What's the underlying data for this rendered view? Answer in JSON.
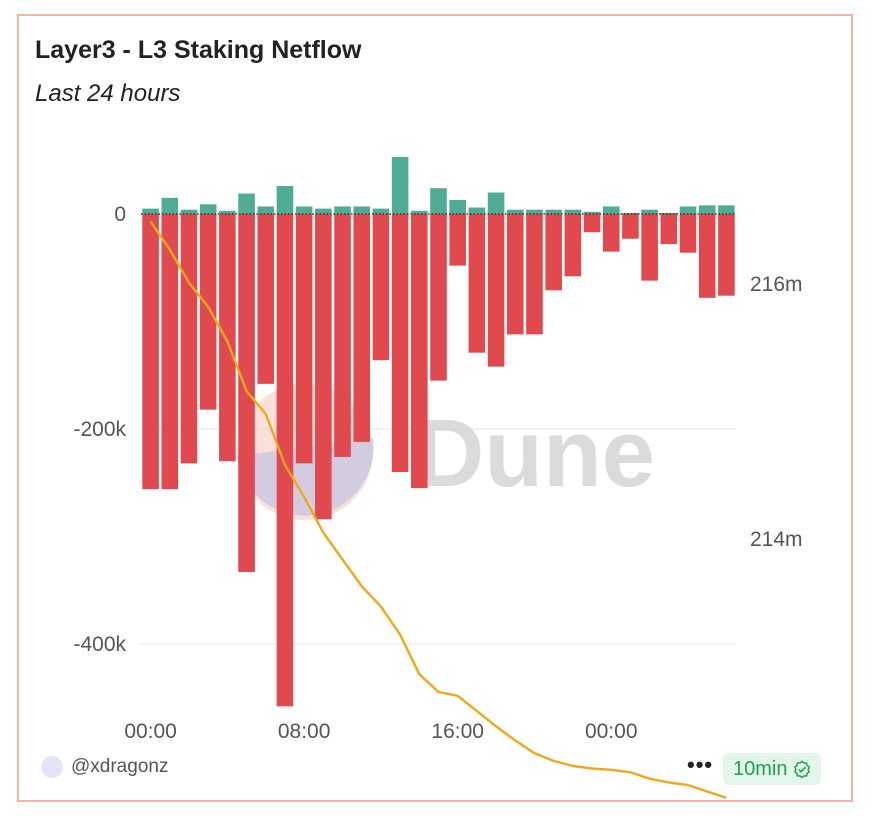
{
  "header": {
    "title": "Layer3 - L3 Staking Netflow",
    "subtitle": "Last 24 hours"
  },
  "watermark": "Dune",
  "footer": {
    "username": "@xdragonz",
    "refresh_label": "10min",
    "more_icon": "more-icon",
    "check_icon": "check-badge-icon"
  },
  "colors": {
    "inflow": "#4fab93",
    "outflow": "#e04a4f",
    "line": "#f0a719"
  },
  "chart_data": {
    "type": "bar",
    "x_tick_labels": [
      "00:00",
      "08:00",
      "16:00",
      "00:00"
    ],
    "x_tick_index": [
      0.5,
      8.5,
      16.5,
      24.5
    ],
    "y_left": {
      "ticks": [
        0,
        -200000,
        -400000
      ],
      "tick_labels": [
        "0",
        "-200k",
        "-400k"
      ],
      "range": [
        -460000,
        55000
      ]
    },
    "y_right": {
      "ticks": [
        216000000,
        214000000
      ],
      "tick_labels": [
        "216m",
        "214m"
      ],
      "range": [
        212650000,
        216720000
      ]
    },
    "series": [
      {
        "kind": "bar",
        "color": "#4fab93",
        "values": [
          5000,
          15000,
          4000,
          9000,
          3000,
          19000,
          7000,
          26000,
          7000,
          5000,
          7000,
          7000,
          5000,
          53000,
          3000,
          24000,
          13000,
          6000,
          20000,
          4000,
          4000,
          4000,
          4000,
          2000,
          7000,
          1000,
          4000,
          1000,
          7000,
          8000,
          8000
        ]
      },
      {
        "kind": "bar",
        "color": "#e04a4f",
        "values": [
          -256000,
          -256000,
          -232000,
          -182000,
          -230000,
          -333000,
          -158000,
          -458000,
          -232000,
          -284000,
          -226000,
          -212000,
          -136000,
          -240000,
          -255000,
          -155000,
          -48000,
          -129000,
          -142000,
          -112000,
          -112000,
          -71000,
          -58000,
          -17000,
          -35000,
          -23000,
          -62000,
          -28000,
          -36000,
          -78000,
          -76000
        ]
      },
      {
        "kind": "line",
        "color": "#f0a719",
        "x": [
          0.5,
          1.5,
          2.5,
          3.5,
          4.5,
          5.5,
          6.5,
          7.5,
          8.5,
          9.5,
          10.5,
          11.5,
          12.5,
          13.5,
          14.5,
          15.5,
          16.5,
          17.5,
          18.5,
          19.5,
          20.5,
          21.5,
          22.5,
          23.5,
          24.5,
          25.5,
          26.5,
          27.5,
          28.5,
          29.5,
          30.5
        ],
        "values": [
          216490000,
          216270000,
          216010000,
          215820000,
          215550000,
          215160000,
          214980000,
          214580000,
          214330000,
          214050000,
          213840000,
          213630000,
          213470000,
          213250000,
          212940000,
          212800000,
          212770000,
          212650000,
          212530000,
          212420000,
          212320000,
          212260000,
          212220000,
          212200000,
          212190000,
          212170000,
          212120000,
          212090000,
          212070000,
          212020000,
          211970000
        ]
      }
    ]
  }
}
